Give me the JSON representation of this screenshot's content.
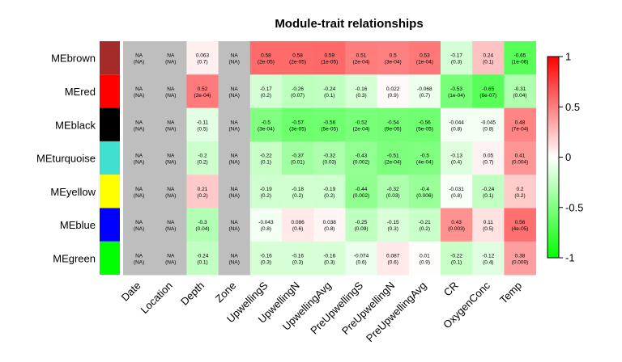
{
  "chart_data": {
    "type": "heatmap",
    "title": "Module-trait relationships",
    "rows": [
      "MEbrown",
      "MEred",
      "MEblack",
      "MEturquoise",
      "MEyellow",
      "MEblue",
      "MEgreen"
    ],
    "row_colors": [
      "#a52a2a",
      "#ff0000",
      "#000000",
      "#40e0d0",
      "#ffff00",
      "#0000ff",
      "#00ff00"
    ],
    "columns": [
      "Date",
      "Location",
      "Depth",
      "Zone",
      "UpwellingS",
      "UpwellingN",
      "UpwellingAvg",
      "PreUpwellingS",
      "PreUpwellingN",
      "PreUpwellingAvg",
      "CR",
      "OxygenConc",
      "Temp"
    ],
    "values": [
      [
        null,
        null,
        0.063,
        null,
        0.58,
        0.58,
        0.59,
        0.51,
        0.5,
        0.53,
        -0.17,
        0.24,
        -0.65
      ],
      [
        null,
        null,
        0.52,
        null,
        -0.17,
        -0.26,
        -0.24,
        -0.16,
        0.022,
        -0.068,
        -0.53,
        -0.65,
        -0.31
      ],
      [
        null,
        null,
        -0.11,
        null,
        -0.5,
        -0.57,
        -0.56,
        -0.52,
        -0.54,
        -0.56,
        -0.044,
        -0.045,
        0.48
      ],
      [
        null,
        null,
        -0.2,
        null,
        -0.22,
        -0.37,
        -0.32,
        -0.43,
        -0.51,
        -0.5,
        -0.13,
        0.05,
        0.41
      ],
      [
        null,
        null,
        0.21,
        null,
        -0.19,
        -0.18,
        -0.19,
        -0.44,
        -0.32,
        -0.4,
        -0.031,
        -0.24,
        0.2
      ],
      [
        null,
        null,
        -0.3,
        null,
        -0.043,
        0.086,
        0.038,
        -0.25,
        -0.15,
        -0.21,
        0.43,
        0.11,
        0.56
      ],
      [
        null,
        null,
        -0.24,
        null,
        -0.16,
        -0.16,
        -0.16,
        -0.074,
        0.087,
        0.01,
        -0.22,
        -0.12,
        0.38
      ]
    ],
    "value_labels": [
      [
        "NA",
        "NA",
        "0.063",
        "NA",
        "0.58",
        "0.58",
        "0.59",
        "0.51",
        "0.5",
        "0.53",
        "-0.17",
        "0.24",
        "-0.65"
      ],
      [
        "NA",
        "NA",
        "0.52",
        "NA",
        "-0.17",
        "-0.26",
        "-0.24",
        "-0.16",
        "0.022",
        "-0.068",
        "-0.53",
        "-0.65",
        "-0.31"
      ],
      [
        "NA",
        "NA",
        "-0.11",
        "NA",
        "-0.5",
        "-0.57",
        "-0.56",
        "-0.52",
        "-0.54",
        "-0.56",
        "-0.044",
        "-0.045",
        "0.48"
      ],
      [
        "NA",
        "NA",
        "-0.2",
        "NA",
        "-0.22",
        "-0.37",
        "-0.32",
        "-0.43",
        "-0.51",
        "-0.5",
        "-0.13",
        "0.05",
        "0.41"
      ],
      [
        "NA",
        "NA",
        "0.21",
        "NA",
        "-0.19",
        "-0.18",
        "-0.19",
        "-0.44",
        "-0.32",
        "-0.4",
        "-0.031",
        "-0.24",
        "0.2"
      ],
      [
        "NA",
        "NA",
        "-0.3",
        "NA",
        "-0.043",
        "0.086",
        "0.038",
        "-0.25",
        "-0.15",
        "-0.21",
        "0.43",
        "0.11",
        "0.56"
      ],
      [
        "NA",
        "NA",
        "-0.24",
        "NA",
        "-0.16",
        "-0.16",
        "-0.16",
        "-0.074",
        "0.087",
        "0.01",
        "-0.22",
        "-0.12",
        "0.38"
      ]
    ],
    "p_labels": [
      [
        "(NA)",
        "(NA)",
        "(0.7)",
        "(NA)",
        "(2e-05)",
        "(2e-05)",
        "(1e-05)",
        "(2e-04)",
        "(3e-04)",
        "(1e-04)",
        "(0.3)",
        "(0.1)",
        "(1e-06)"
      ],
      [
        "(NA)",
        "(NA)",
        "(2e-04)",
        "(NA)",
        "(0.2)",
        "(0.07)",
        "(0.1)",
        "(0.3)",
        "(0.9)",
        "(0.7)",
        "(1e-04)",
        "(6e-07)",
        "(0.04)"
      ],
      [
        "(NA)",
        "(NA)",
        "(0.5)",
        "(NA)",
        "(3e-04)",
        "(3e-05)",
        "(5e-05)",
        "(2e-04)",
        "(9e-05)",
        "(5e-05)",
        "(0.8)",
        "(0.8)",
        "(7e-04)"
      ],
      [
        "(NA)",
        "(NA)",
        "(0.2)",
        "(NA)",
        "(0.1)",
        "(0.01)",
        "(0.03)",
        "(0.002)",
        "(2e-04)",
        "(4e-04)",
        "(0.4)",
        "(0.7)",
        "(0.004)"
      ],
      [
        "(NA)",
        "(NA)",
        "(0.2)",
        "(NA)",
        "(0.2)",
        "(0.2)",
        "(0.2)",
        "(0.002)",
        "(0.03)",
        "(0.006)",
        "(0.8)",
        "(0.1)",
        "(0.2)"
      ],
      [
        "(NA)",
        "(NA)",
        "(0.04)",
        "(NA)",
        "(0.8)",
        "(0.6)",
        "(0.8)",
        "(0.09)",
        "(0.3)",
        "(0.2)",
        "(0.003)",
        "(0.5)",
        "(4e-05)"
      ],
      [
        "(NA)",
        "(NA)",
        "(0.1)",
        "(NA)",
        "(0.3)",
        "(0.3)",
        "(0.3)",
        "(0.6)",
        "(0.6)",
        "(0.9)",
        "(0.1)",
        "(0.4)",
        "(0.009)"
      ]
    ],
    "color_scale": {
      "min": -1,
      "max": 1,
      "low": "#00ff00",
      "mid": "#ffffff",
      "high": "#ff0000",
      "na": "#bebebe"
    },
    "legend_ticks": [
      1,
      0.5,
      0,
      -0.5,
      -1
    ],
    "legend_tick_labels": [
      "1",
      "0.5",
      "0",
      "-0.5",
      "-1"
    ]
  }
}
